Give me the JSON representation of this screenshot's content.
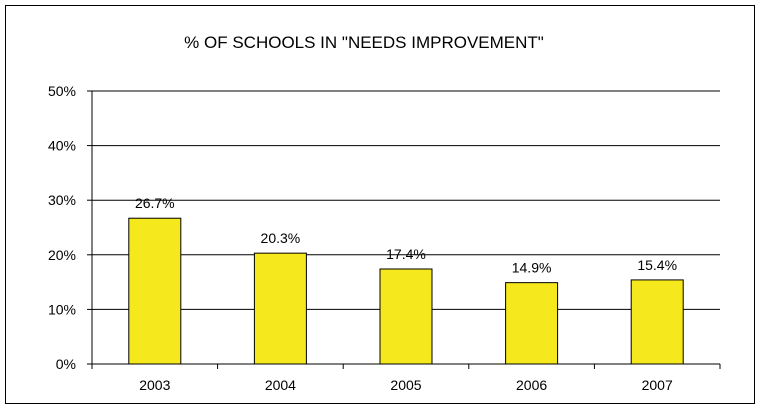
{
  "chart_data": {
    "type": "bar",
    "title": "% OF SCHOOLS IN \"NEEDS IMPROVEMENT\"",
    "xlabel": "",
    "ylabel": "",
    "categories": [
      "2003",
      "2004",
      "2005",
      "2006",
      "2007"
    ],
    "values": [
      26.7,
      20.3,
      17.4,
      14.9,
      15.4
    ],
    "data_labels": [
      "26.7%",
      "20.3%",
      "17.4%",
      "14.9%",
      "15.4%"
    ],
    "ylim": [
      0,
      50
    ],
    "yticks": [
      0,
      10,
      20,
      30,
      40,
      50
    ],
    "ytick_labels": [
      "0%",
      "10%",
      "20%",
      "30%",
      "40%",
      "50%"
    ],
    "grid": true,
    "legend": "none",
    "colors": {
      "bar_fill": "#f5e81c",
      "bar_stroke": "#000000",
      "grid": "#000000"
    }
  }
}
